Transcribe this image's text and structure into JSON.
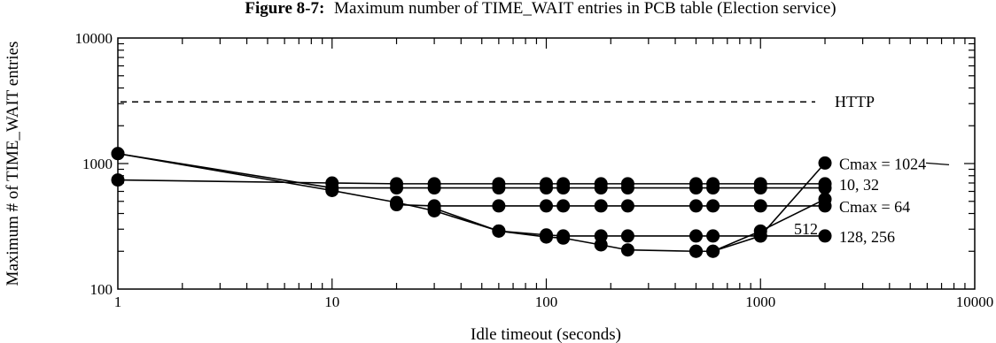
{
  "chart_data": {
    "type": "line",
    "title_number": "Figure 8-7:",
    "title_text": "Maximum number of TIME_WAIT entries in PCB table (Election service)",
    "xlabel": "Idle timeout (seconds)",
    "ylabel": "Maximum # of TIME_WAIT entries",
    "xscale": "log",
    "yscale": "log",
    "xlim": [
      1,
      10000
    ],
    "ylim": [
      100,
      10000
    ],
    "x_ticks": [
      "1",
      "10",
      "100",
      "1000",
      "10000"
    ],
    "y_ticks": [
      "100",
      "1000",
      "10000"
    ],
    "reference_line": {
      "label": "HTTP",
      "value": 3100,
      "style": "dashed"
    },
    "series": [
      {
        "label": "Cmax = 1024",
        "x": [
          1,
          10,
          20,
          30,
          60,
          100,
          120,
          180,
          240,
          500,
          600,
          1000,
          2000
        ],
        "y": [
          1200,
          610,
          490,
          420,
          290,
          260,
          255,
          225,
          205,
          200,
          200,
          265,
          1010
        ]
      },
      {
        "label": "10, 32",
        "x": [
          1,
          10,
          20,
          30,
          60,
          100,
          120,
          180,
          240,
          500,
          600,
          1000,
          2000
        ],
        "y": [
          740,
          700,
          690,
          690,
          690,
          690,
          690,
          690,
          690,
          690,
          690,
          690,
          690
        ]
      },
      {
        "label": "",
        "x": [
          1,
          10,
          20,
          30,
          60,
          100,
          120,
          180,
          240,
          500,
          600,
          1000,
          2000
        ],
        "y": [
          1200,
          640,
          640,
          640,
          640,
          640,
          640,
          640,
          640,
          640,
          640,
          640,
          640
        ]
      },
      {
        "label": "Cmax = 64",
        "x": [
          20,
          30,
          60,
          100,
          120,
          180,
          240,
          500,
          600,
          1000,
          2000
        ],
        "y": [
          470,
          460,
          460,
          460,
          460,
          460,
          460,
          460,
          460,
          460,
          460
        ]
      },
      {
        "label": "128, 256",
        "x": [
          30,
          60,
          100,
          120,
          180,
          240,
          500,
          600,
          1000,
          2000
        ],
        "y": [
          440,
          290,
          270,
          265,
          265,
          265,
          265,
          265,
          265,
          265
        ]
      },
      {
        "label": "512",
        "x": [
          500,
          600,
          1000,
          2000
        ],
        "y": [
          200,
          200,
          290,
          520
        ]
      }
    ]
  }
}
